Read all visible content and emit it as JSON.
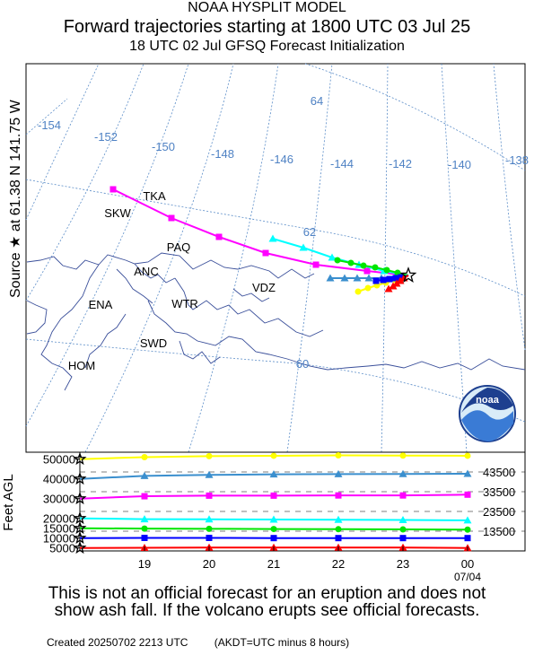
{
  "header": {
    "line1": "NOAA HYSPLIT MODEL",
    "line2": "Forward trajectories starting at 1800 UTC 03 Jul 25",
    "line3": "18 UTC 02 Jul    GFSQ  Forecast Initialization"
  },
  "source_label": "Source ★  at   61.38 N  141.75 W",
  "map": {
    "longitude_labels": [
      "-154",
      "-152",
      "-150",
      "-148",
      "-146",
      "-144",
      "-142",
      "-140",
      "-138"
    ],
    "latitude_labels": [
      "64",
      "62",
      "60"
    ],
    "places": [
      "TKA",
      "SKW",
      "PAQ",
      "ANC",
      "ENA",
      "WTR",
      "VDZ",
      "SWD",
      "HOM"
    ],
    "logo_text": "noaa"
  },
  "height_panel": {
    "y_axis_label": "Feet AGL",
    "left_ticks": [
      "50000",
      "40000",
      "30000",
      "20000",
      "15000",
      "10000",
      "5000"
    ],
    "right_labels": [
      "43500",
      "33500",
      "23500",
      "13500"
    ],
    "x_ticks": [
      "19",
      "20",
      "21",
      "22",
      "23",
      "00"
    ],
    "x_sublabel": "07/04"
  },
  "chart_data": {
    "type": "line",
    "xlabel": "",
    "ylabel": "Feet AGL",
    "x": [
      "18",
      "19",
      "20",
      "21",
      "22",
      "23",
      "00"
    ],
    "ylim": [
      3500,
      53500
    ],
    "series": [
      {
        "color": "#ffff00",
        "marker": "circle",
        "values": [
          50000,
          51000,
          51500,
          51700,
          51900,
          51800,
          51700
        ]
      },
      {
        "color": "#3b8fce",
        "marker": "triangle",
        "values": [
          40000,
          41500,
          42000,
          42300,
          42400,
          42500,
          42600
        ]
      },
      {
        "color": "#ff00ff",
        "marker": "square",
        "values": [
          30000,
          31200,
          31500,
          31500,
          31600,
          31600,
          32000
        ]
      },
      {
        "color": "#00ffff",
        "marker": "triangle",
        "values": [
          20000,
          19600,
          19500,
          19400,
          19300,
          19200,
          19000
        ]
      },
      {
        "color": "#00e600",
        "marker": "circle",
        "values": [
          15000,
          14800,
          14700,
          14600,
          14500,
          14400,
          14300
        ]
      },
      {
        "color": "#0000ff",
        "marker": "square",
        "values": [
          10000,
          10100,
          10100,
          10000,
          10000,
          10000,
          10000
        ]
      },
      {
        "color": "#ff0000",
        "marker": "triangle",
        "values": [
          5000,
          5100,
          5200,
          5200,
          5200,
          5200,
          5000
        ]
      }
    ],
    "dashed_reference_levels": [
      43500,
      33500,
      23500,
      13500
    ]
  },
  "disclaimer": {
    "line1": "This is not an official forecast for an eruption and does not",
    "line2": "show ash fall. If the volcano erupts see official forecasts."
  },
  "footer": {
    "created": "Created 20250702 2213 UTC",
    "note": "(AKDT=UTC minus 8 hours)"
  }
}
